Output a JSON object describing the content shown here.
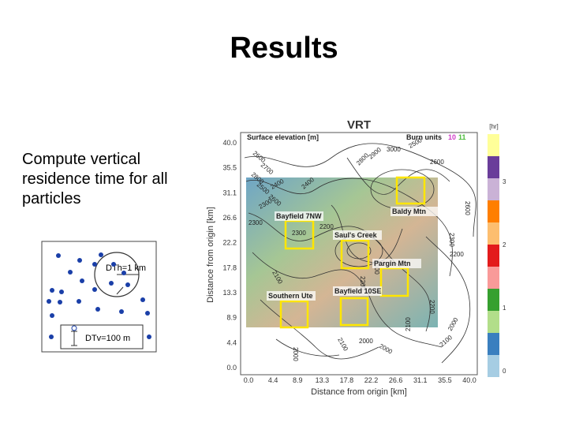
{
  "title": "Results",
  "body": "Compute vertical residence time for all particles",
  "diagram": {
    "dth_label": "DTh=1 km",
    "dtv_label": "DTv=100 m"
  },
  "map": {
    "title": "VRT",
    "subtitle": "Surface elevation [m]",
    "legend_label": "Burn units",
    "legend_numbers": [
      "10",
      "11"
    ],
    "x_label": "Distance from origin [km]",
    "y_label": "Distance from origin [km]",
    "x_ticks": [
      "0.0",
      "4.4",
      "8.9",
      "13.3",
      "17.8",
      "22.2",
      "26.6",
      "31.1",
      "35.5",
      "40.0"
    ],
    "y_ticks": [
      "40.0",
      "35.5",
      "31.1",
      "26.6",
      "22.2",
      "17.8",
      "13.3",
      "8.9",
      "4.4",
      "0.0"
    ],
    "colorbar_unit": "[hr]",
    "colorbar_ticks": [
      "3",
      "2",
      "1",
      "0"
    ],
    "sites": [
      "Baldy Mtn",
      "Bayfield 7NW",
      "Saul's Creek",
      "Pargin Mtn",
      "Southern Ute",
      "Bayfield 10SE"
    ],
    "contour_labels": [
      "2600",
      "2700",
      "2800",
      "2500",
      "2600",
      "2400",
      "2300",
      "3000",
      "2900",
      "2800",
      "2600",
      "2500",
      "2400",
      "2300",
      "2200",
      "2300",
      "2600",
      "2300",
      "2200",
      "2100",
      "2200",
      "2100",
      "2000",
      "2000",
      "2100",
      "2000",
      "2100",
      "2200",
      "2000",
      "2100"
    ]
  }
}
